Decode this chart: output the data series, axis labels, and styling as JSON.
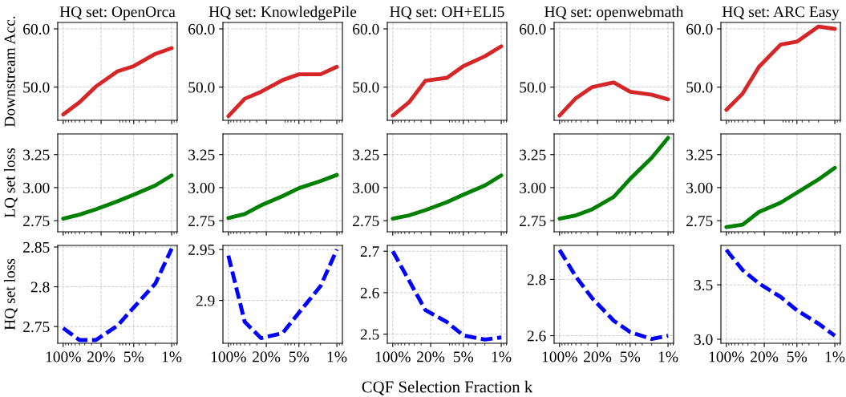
{
  "chart_data": [
    {
      "type": "line",
      "title": "HQ set: OpenOrca",
      "ylabel": "Downstream Acc.",
      "x": [
        100,
        50,
        25,
        10,
        5,
        2,
        1
      ],
      "values": [
        45.3,
        47.4,
        50.1,
        52.7,
        53.6,
        55.7,
        56.7
      ],
      "color": "#d62728",
      "line_style": "solid",
      "log": "x",
      "xlim": [
        126,
        0.79
      ],
      "xticks": [
        {
          "value": 100,
          "label": null
        },
        {
          "value": 20,
          "label": null
        },
        {
          "value": 5,
          "label": null
        },
        {
          "value": 1,
          "label": null
        }
      ],
      "ylim": [
        44.3,
        61.1
      ],
      "yticks": [
        {
          "value": 50,
          "label": "50.0"
        },
        {
          "value": 60,
          "label": "60.0"
        }
      ],
      "tick_labels": "y",
      "grid": true
    },
    {
      "type": "line",
      "title": "HQ set: KnowledgePile",
      "x": [
        100,
        50,
        25,
        10,
        5,
        2,
        1
      ],
      "values": [
        45.0,
        48.0,
        49.2,
        51.2,
        52.2,
        52.2,
        53.5
      ],
      "color": "#d62728",
      "line_style": "solid",
      "log": "x",
      "xlim": [
        126,
        0.79
      ],
      "xticks": [
        {
          "value": 100,
          "label": null
        },
        {
          "value": 20,
          "label": null
        },
        {
          "value": 5,
          "label": null
        },
        {
          "value": 1,
          "label": null
        }
      ],
      "ylim": [
        44.3,
        61.1
      ],
      "yticks": [
        {
          "value": 50,
          "label": "50.0"
        },
        {
          "value": 60,
          "label": "60.0"
        }
      ],
      "tick_labels": "y",
      "grid": true
    },
    {
      "type": "line",
      "title": "HQ set: OH+ELI5",
      "x": [
        100,
        50,
        25,
        10,
        5,
        2,
        1
      ],
      "values": [
        45.1,
        47.4,
        51.1,
        51.6,
        53.6,
        55.3,
        57.0
      ],
      "color": "#d62728",
      "line_style": "solid",
      "log": "x",
      "xlim": [
        126,
        0.79
      ],
      "xticks": [
        {
          "value": 100,
          "label": null
        },
        {
          "value": 20,
          "label": null
        },
        {
          "value": 5,
          "label": null
        },
        {
          "value": 1,
          "label": null
        }
      ],
      "ylim": [
        44.3,
        61.1
      ],
      "yticks": [
        {
          "value": 50,
          "label": "50.0"
        },
        {
          "value": 60,
          "label": "60.0"
        }
      ],
      "tick_labels": "y",
      "grid": true
    },
    {
      "type": "line",
      "title": "HQ set: openwebmath",
      "x": [
        100,
        50,
        25,
        10,
        5,
        2,
        1
      ],
      "values": [
        45.1,
        48.1,
        50.0,
        50.8,
        49.2,
        48.7,
        47.9
      ],
      "color": "#d62728",
      "line_style": "solid",
      "log": "x",
      "xlim": [
        126,
        0.79
      ],
      "xticks": [
        {
          "value": 100,
          "label": null
        },
        {
          "value": 20,
          "label": null
        },
        {
          "value": 5,
          "label": null
        },
        {
          "value": 1,
          "label": null
        }
      ],
      "ylim": [
        44.3,
        61.1
      ],
      "yticks": [
        {
          "value": 50,
          "label": "50.0"
        },
        {
          "value": 60,
          "label": "60.0"
        }
      ],
      "tick_labels": "y",
      "grid": true
    },
    {
      "type": "line",
      "title": "HQ set: ARC Easy",
      "x": [
        100,
        50,
        25,
        10,
        5,
        2,
        1
      ],
      "values": [
        46.1,
        48.9,
        53.5,
        57.3,
        57.8,
        60.4,
        60.0
      ],
      "color": "#d62728",
      "line_style": "solid",
      "log": "x",
      "xlim": [
        126,
        0.79
      ],
      "xticks": [
        {
          "value": 100,
          "label": null
        },
        {
          "value": 20,
          "label": null
        },
        {
          "value": 5,
          "label": null
        },
        {
          "value": 1,
          "label": null
        }
      ],
      "ylim": [
        44.3,
        61.1
      ],
      "yticks": [
        {
          "value": 50,
          "label": "50.0"
        },
        {
          "value": 60,
          "label": "60.0"
        }
      ],
      "tick_labels": "y",
      "grid": true
    },
    {
      "type": "line",
      "ylabel": "LQ set loss",
      "x": [
        100,
        50,
        25,
        10,
        5,
        2,
        1
      ],
      "values": [
        2.766,
        2.796,
        2.836,
        2.896,
        2.946,
        3.016,
        3.092
      ],
      "color": "#008000",
      "line_style": "solid",
      "log": "x",
      "xlim": [
        126,
        0.79
      ],
      "xticks": [
        {
          "value": 100,
          "label": null
        },
        {
          "value": 20,
          "label": null
        },
        {
          "value": 5,
          "label": null
        },
        {
          "value": 1,
          "label": null
        }
      ],
      "ylim": [
        2.666,
        3.406
      ],
      "yticks": [
        {
          "value": 2.75,
          "label": "2.75"
        },
        {
          "value": 3.0,
          "label": "3.00"
        },
        {
          "value": 3.25,
          "label": "3.25"
        }
      ],
      "tick_labels": "y",
      "grid": true
    },
    {
      "type": "line",
      "x": [
        100,
        50,
        25,
        10,
        5,
        2,
        1
      ],
      "values": [
        2.77,
        2.8,
        2.866,
        2.936,
        2.996,
        3.05,
        3.096
      ],
      "color": "#008000",
      "line_style": "solid",
      "log": "x",
      "xlim": [
        126,
        0.79
      ],
      "xticks": [
        {
          "value": 100,
          "label": null
        },
        {
          "value": 20,
          "label": null
        },
        {
          "value": 5,
          "label": null
        },
        {
          "value": 1,
          "label": null
        }
      ],
      "ylim": [
        2.666,
        3.406
      ],
      "yticks": [
        {
          "value": 2.75,
          "label": "2.75"
        },
        {
          "value": 3.0,
          "label": "3.00"
        },
        {
          "value": 3.25,
          "label": "3.25"
        }
      ],
      "tick_labels": "y",
      "grid": true
    },
    {
      "type": "line",
      "x": [
        100,
        50,
        25,
        10,
        5,
        2,
        1
      ],
      "values": [
        2.766,
        2.79,
        2.83,
        2.89,
        2.946,
        3.016,
        3.092
      ],
      "color": "#008000",
      "line_style": "solid",
      "log": "x",
      "xlim": [
        126,
        0.79
      ],
      "xticks": [
        {
          "value": 100,
          "label": null
        },
        {
          "value": 20,
          "label": null
        },
        {
          "value": 5,
          "label": null
        },
        {
          "value": 1,
          "label": null
        }
      ],
      "ylim": [
        2.666,
        3.406
      ],
      "yticks": [
        {
          "value": 2.75,
          "label": "2.75"
        },
        {
          "value": 3.0,
          "label": "3.00"
        },
        {
          "value": 3.25,
          "label": "3.25"
        }
      ],
      "tick_labels": "y",
      "grid": true
    },
    {
      "type": "line",
      "x": [
        100,
        50,
        25,
        10,
        5,
        2,
        1
      ],
      "values": [
        2.766,
        2.79,
        2.836,
        2.93,
        3.066,
        3.226,
        3.376
      ],
      "color": "#008000",
      "line_style": "solid",
      "log": "x",
      "xlim": [
        126,
        0.79
      ],
      "xticks": [
        {
          "value": 100,
          "label": null
        },
        {
          "value": 20,
          "label": null
        },
        {
          "value": 5,
          "label": null
        },
        {
          "value": 1,
          "label": null
        }
      ],
      "ylim": [
        2.666,
        3.406
      ],
      "yticks": [
        {
          "value": 2.75,
          "label": "2.75"
        },
        {
          "value": 3.0,
          "label": "3.00"
        },
        {
          "value": 3.25,
          "label": "3.25"
        }
      ],
      "tick_labels": "y",
      "grid": true
    },
    {
      "type": "line",
      "x": [
        100,
        50,
        25,
        10,
        5,
        2,
        1
      ],
      "values": [
        2.702,
        2.72,
        2.816,
        2.886,
        2.962,
        3.062,
        3.15
      ],
      "color": "#008000",
      "line_style": "solid",
      "log": "x",
      "xlim": [
        126,
        0.79
      ],
      "xticks": [
        {
          "value": 100,
          "label": null
        },
        {
          "value": 20,
          "label": null
        },
        {
          "value": 5,
          "label": null
        },
        {
          "value": 1,
          "label": null
        }
      ],
      "ylim": [
        2.666,
        3.406
      ],
      "yticks": [
        {
          "value": 2.75,
          "label": "2.75"
        },
        {
          "value": 3.0,
          "label": "3.00"
        },
        {
          "value": 3.25,
          "label": "3.25"
        }
      ],
      "tick_labels": "y",
      "grid": true
    },
    {
      "type": "line",
      "ylabel": "HQ set loss",
      "x": [
        100,
        50,
        25,
        10,
        5,
        2,
        1
      ],
      "values": [
        2.748,
        2.733,
        2.733,
        2.751,
        2.774,
        2.804,
        2.848
      ],
      "color": "#0000ff",
      "line_style": "dashed",
      "log": "x",
      "xlim": [
        126,
        0.79
      ],
      "xticks": [
        {
          "value": 100,
          "label": "100%"
        },
        {
          "value": 20,
          "label": "20%"
        },
        {
          "value": 5,
          "label": "5%"
        },
        {
          "value": 1,
          "label": "1%"
        }
      ],
      "ylim": [
        2.729,
        2.852
      ],
      "yticks": [
        2.75,
        2.8,
        2.85
      ],
      "grid": true
    },
    {
      "type": "line",
      "x": [
        100,
        50,
        25,
        10,
        5,
        2,
        1
      ],
      "values": [
        2.944,
        2.879,
        2.863,
        2.868,
        2.888,
        2.914,
        2.95
      ],
      "color": "#0000ff",
      "line_style": "dashed",
      "log": "x",
      "xlim": [
        126,
        0.79
      ],
      "xticks": [
        {
          "value": 100,
          "label": "100%"
        },
        {
          "value": 20,
          "label": "20%"
        },
        {
          "value": 5,
          "label": "5%"
        },
        {
          "value": 1,
          "label": "1%"
        }
      ],
      "ylim": [
        2.858,
        2.954
      ],
      "yticks": [
        2.9,
        2.95
      ],
      "grid": true
    },
    {
      "type": "line",
      "xlabel": "CQF Selection Fraction k",
      "x": [
        100,
        50,
        25,
        10,
        5,
        2,
        1
      ],
      "values": [
        2.7,
        2.629,
        2.558,
        2.529,
        2.497,
        2.487,
        2.492
      ],
      "color": "#0000ff",
      "line_style": "dashed",
      "log": "x",
      "xlim": [
        126,
        0.79
      ],
      "xticks": [
        {
          "value": 100,
          "label": "100%"
        },
        {
          "value": 20,
          "label": "20%"
        },
        {
          "value": 5,
          "label": "5%"
        },
        {
          "value": 1,
          "label": "1%"
        }
      ],
      "ylim": [
        2.478,
        2.714
      ],
      "yticks": [
        2.5,
        2.6,
        2.7
      ],
      "grid": true
    },
    {
      "type": "line",
      "x": [
        100,
        50,
        25,
        10,
        5,
        2,
        1
      ],
      "values": [
        2.905,
        2.81,
        2.733,
        2.653,
        2.613,
        2.588,
        2.6
      ],
      "color": "#0000ff",
      "line_style": "dashed",
      "log": "x",
      "xlim": [
        126,
        0.79
      ],
      "xticks": [
        {
          "value": 100,
          "label": "100%"
        },
        {
          "value": 20,
          "label": "20%"
        },
        {
          "value": 5,
          "label": "5%"
        },
        {
          "value": 1,
          "label": "1%"
        }
      ],
      "ylim": [
        2.573,
        2.921
      ],
      "yticks": [
        2.6,
        2.8
      ],
      "grid": true
    },
    {
      "type": "line",
      "x": [
        100,
        50,
        25,
        10,
        5,
        2,
        1
      ],
      "values": [
        3.821,
        3.635,
        3.512,
        3.389,
        3.266,
        3.143,
        3.032
      ],
      "color": "#0000ff",
      "line_style": "dashed",
      "log": "x",
      "xlim": [
        126,
        0.79
      ],
      "xticks": [
        {
          "value": 100,
          "label": "100%"
        },
        {
          "value": 20,
          "label": "20%"
        },
        {
          "value": 5,
          "label": "5%"
        },
        {
          "value": 1,
          "label": "1%"
        }
      ],
      "ylim": [
        2.963,
        3.862
      ],
      "yticks": [
        {
          "value": 3.0,
          "label": "3.0"
        },
        {
          "value": 3.5,
          "label": "3.5"
        }
      ],
      "grid": true
    }
  ]
}
